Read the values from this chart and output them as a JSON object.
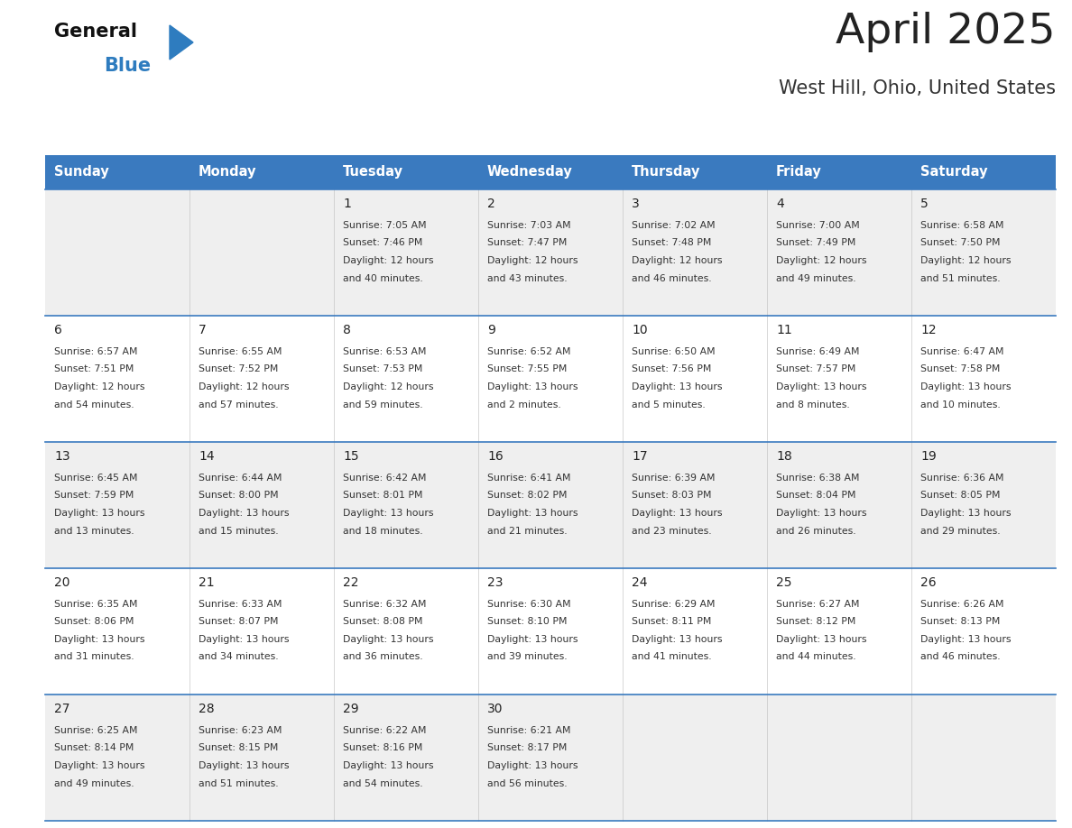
{
  "title": "April 2025",
  "subtitle": "West Hill, Ohio, United States",
  "days_of_week": [
    "Sunday",
    "Monday",
    "Tuesday",
    "Wednesday",
    "Thursday",
    "Friday",
    "Saturday"
  ],
  "header_bg_color": "#3a7abf",
  "header_text_color": "#ffffff",
  "row_bg_colors": [
    "#efefef",
    "#ffffff"
  ],
  "separator_color": "#3a7abf",
  "day_number_color": "#222222",
  "cell_text_color": "#333333",
  "title_color": "#222222",
  "subtitle_color": "#333333",
  "weeks": [
    [
      {
        "day": "",
        "sunrise": "",
        "sunset": "",
        "daylight": ""
      },
      {
        "day": "",
        "sunrise": "",
        "sunset": "",
        "daylight": ""
      },
      {
        "day": "1",
        "sunrise": "7:05 AM",
        "sunset": "7:46 PM",
        "daylight": "12 hours and 40 minutes."
      },
      {
        "day": "2",
        "sunrise": "7:03 AM",
        "sunset": "7:47 PM",
        "daylight": "12 hours and 43 minutes."
      },
      {
        "day": "3",
        "sunrise": "7:02 AM",
        "sunset": "7:48 PM",
        "daylight": "12 hours and 46 minutes."
      },
      {
        "day": "4",
        "sunrise": "7:00 AM",
        "sunset": "7:49 PM",
        "daylight": "12 hours and 49 minutes."
      },
      {
        "day": "5",
        "sunrise": "6:58 AM",
        "sunset": "7:50 PM",
        "daylight": "12 hours and 51 minutes."
      }
    ],
    [
      {
        "day": "6",
        "sunrise": "6:57 AM",
        "sunset": "7:51 PM",
        "daylight": "12 hours and 54 minutes."
      },
      {
        "day": "7",
        "sunrise": "6:55 AM",
        "sunset": "7:52 PM",
        "daylight": "12 hours and 57 minutes."
      },
      {
        "day": "8",
        "sunrise": "6:53 AM",
        "sunset": "7:53 PM",
        "daylight": "12 hours and 59 minutes."
      },
      {
        "day": "9",
        "sunrise": "6:52 AM",
        "sunset": "7:55 PM",
        "daylight": "13 hours and 2 minutes."
      },
      {
        "day": "10",
        "sunrise": "6:50 AM",
        "sunset": "7:56 PM",
        "daylight": "13 hours and 5 minutes."
      },
      {
        "day": "11",
        "sunrise": "6:49 AM",
        "sunset": "7:57 PM",
        "daylight": "13 hours and 8 minutes."
      },
      {
        "day": "12",
        "sunrise": "6:47 AM",
        "sunset": "7:58 PM",
        "daylight": "13 hours and 10 minutes."
      }
    ],
    [
      {
        "day": "13",
        "sunrise": "6:45 AM",
        "sunset": "7:59 PM",
        "daylight": "13 hours and 13 minutes."
      },
      {
        "day": "14",
        "sunrise": "6:44 AM",
        "sunset": "8:00 PM",
        "daylight": "13 hours and 15 minutes."
      },
      {
        "day": "15",
        "sunrise": "6:42 AM",
        "sunset": "8:01 PM",
        "daylight": "13 hours and 18 minutes."
      },
      {
        "day": "16",
        "sunrise": "6:41 AM",
        "sunset": "8:02 PM",
        "daylight": "13 hours and 21 minutes."
      },
      {
        "day": "17",
        "sunrise": "6:39 AM",
        "sunset": "8:03 PM",
        "daylight": "13 hours and 23 minutes."
      },
      {
        "day": "18",
        "sunrise": "6:38 AM",
        "sunset": "8:04 PM",
        "daylight": "13 hours and 26 minutes."
      },
      {
        "day": "19",
        "sunrise": "6:36 AM",
        "sunset": "8:05 PM",
        "daylight": "13 hours and 29 minutes."
      }
    ],
    [
      {
        "day": "20",
        "sunrise": "6:35 AM",
        "sunset": "8:06 PM",
        "daylight": "13 hours and 31 minutes."
      },
      {
        "day": "21",
        "sunrise": "6:33 AM",
        "sunset": "8:07 PM",
        "daylight": "13 hours and 34 minutes."
      },
      {
        "day": "22",
        "sunrise": "6:32 AM",
        "sunset": "8:08 PM",
        "daylight": "13 hours and 36 minutes."
      },
      {
        "day": "23",
        "sunrise": "6:30 AM",
        "sunset": "8:10 PM",
        "daylight": "13 hours and 39 minutes."
      },
      {
        "day": "24",
        "sunrise": "6:29 AM",
        "sunset": "8:11 PM",
        "daylight": "13 hours and 41 minutes."
      },
      {
        "day": "25",
        "sunrise": "6:27 AM",
        "sunset": "8:12 PM",
        "daylight": "13 hours and 44 minutes."
      },
      {
        "day": "26",
        "sunrise": "6:26 AM",
        "sunset": "8:13 PM",
        "daylight": "13 hours and 46 minutes."
      }
    ],
    [
      {
        "day": "27",
        "sunrise": "6:25 AM",
        "sunset": "8:14 PM",
        "daylight": "13 hours and 49 minutes."
      },
      {
        "day": "28",
        "sunrise": "6:23 AM",
        "sunset": "8:15 PM",
        "daylight": "13 hours and 51 minutes."
      },
      {
        "day": "29",
        "sunrise": "6:22 AM",
        "sunset": "8:16 PM",
        "daylight": "13 hours and 54 minutes."
      },
      {
        "day": "30",
        "sunrise": "6:21 AM",
        "sunset": "8:17 PM",
        "daylight": "13 hours and 56 minutes."
      },
      {
        "day": "",
        "sunrise": "",
        "sunset": "",
        "daylight": ""
      },
      {
        "day": "",
        "sunrise": "",
        "sunset": "",
        "daylight": ""
      },
      {
        "day": "",
        "sunrise": "",
        "sunset": "",
        "daylight": ""
      }
    ]
  ],
  "fig_width": 11.88,
  "fig_height": 9.18,
  "dpi": 100
}
